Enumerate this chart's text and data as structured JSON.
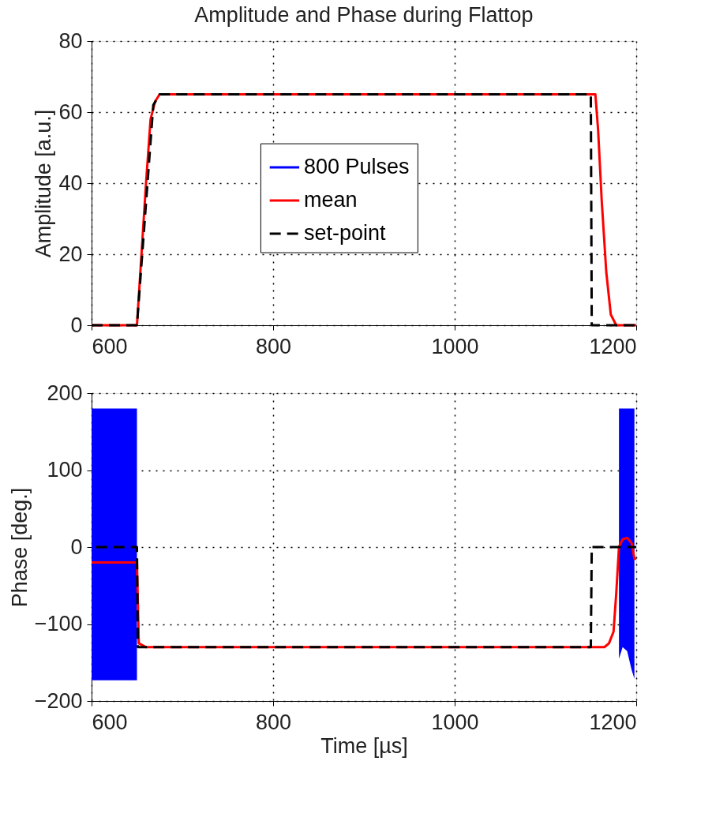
{
  "chart_data": [
    {
      "type": "line",
      "title": "Amplitude and Phase during Flattop",
      "ylabel": "Amplitude [a.u.]",
      "xlim": [
        600,
        1200
      ],
      "xticks": [
        600,
        800,
        1000,
        1200
      ],
      "ylim": [
        0,
        80
      ],
      "yticks": [
        0,
        20,
        40,
        60,
        80
      ],
      "grid": true,
      "legend": "right",
      "marker": "none",
      "series": [
        {
          "name": "800 Pulses",
          "color": "#0000ff",
          "line_style": "solid"
        },
        {
          "name": "mean",
          "color": "#ff0000",
          "line_style": "solid",
          "x": [
            600,
            650,
            655,
            660,
            665,
            670,
            675,
            1155,
            1158,
            1162,
            1167,
            1172,
            1178,
            1200
          ],
          "values": [
            0,
            0,
            20,
            40,
            58,
            63,
            65,
            65,
            55,
            35,
            15,
            3,
            0,
            0
          ]
        },
        {
          "name": "set-point",
          "color": "#000000",
          "line_style": "dashed",
          "x": [
            600,
            650,
            668,
            675,
            1150,
            1151,
            1200
          ],
          "values": [
            0,
            0,
            62,
            65,
            65,
            0,
            0
          ]
        }
      ]
    },
    {
      "type": "line",
      "xlabel": "Time [µs]",
      "ylabel": "Phase [deg.]",
      "xlim": [
        600,
        1200
      ],
      "xticks": [
        600,
        800,
        1000,
        1200
      ],
      "ylim": [
        -200,
        200
      ],
      "yticks": [
        -200,
        -100,
        0,
        100,
        200
      ],
      "grid": true,
      "legend": false,
      "marker": "none",
      "series": [
        {
          "color": "#0000ff",
          "x": [
            600,
            650,
            900,
            1181,
            1185,
            1190,
            1195,
            1198
          ],
          "values": [
            null,
            null,
            null,
            null,
            null,
            null,
            null,
            null
          ],
          "lower": [
            -173,
            -173,
            null,
            -145,
            -130,
            -135,
            -160,
            -171
          ],
          "upper": [
            180,
            180,
            null,
            180,
            180,
            180,
            180,
            180
          ]
        },
        {
          "color": "#ff0000",
          "line_style": "solid",
          "x": [
            600,
            650,
            652,
            660,
            1165,
            1170,
            1175,
            1178,
            1181,
            1185,
            1190,
            1195,
            1198,
            1200
          ],
          "values": [
            -20,
            -20,
            -125,
            -130,
            -130,
            -125,
            -110,
            -60,
            0,
            10,
            12,
            5,
            -15,
            -15
          ]
        },
        {
          "color": "#000000",
          "line_style": "dashed",
          "x": [
            605,
            650,
            651,
            1150,
            1151,
            1200
          ],
          "values": [
            0,
            0,
            -130,
            -130,
            0,
            0
          ]
        }
      ]
    }
  ]
}
